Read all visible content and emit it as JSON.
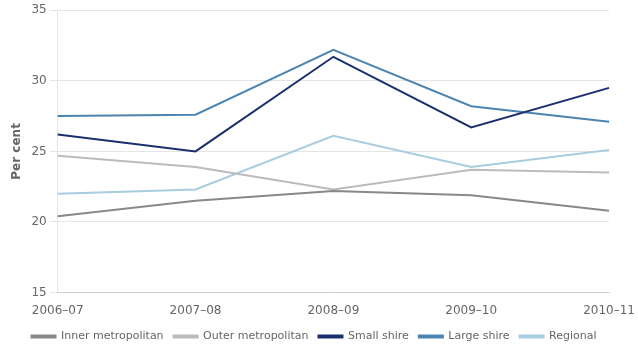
{
  "chart_data": {
    "type": "line",
    "ylabel": "Per cent",
    "categories": [
      "2006–07",
      "2007–08",
      "2008–09",
      "2009–10",
      "2010–11"
    ],
    "series": [
      {
        "name": "Inner metropolitan",
        "color": "#888888",
        "values": [
          20.4,
          21.5,
          22.2,
          21.9,
          20.8
        ]
      },
      {
        "name": "Outer metropolitan",
        "color": "#bbbbbb",
        "values": [
          24.7,
          23.9,
          22.3,
          23.7,
          23.5
        ]
      },
      {
        "name": "Small shire",
        "color": "#1a2f6e",
        "values": [
          26.2,
          25.0,
          31.7,
          26.7,
          29.5
        ]
      },
      {
        "name": "Large shire",
        "color": "#4d85b0",
        "values": [
          27.5,
          27.6,
          32.2,
          28.2,
          27.1
        ]
      },
      {
        "name": "Regional",
        "color": "#a8cce0",
        "values": [
          22.0,
          22.3,
          26.1,
          23.9,
          25.1
        ]
      }
    ],
    "ylim": [
      15,
      35
    ],
    "yticks": [
      15,
      20,
      25,
      30,
      35
    ],
    "grid": true,
    "legend": "bottom"
  }
}
